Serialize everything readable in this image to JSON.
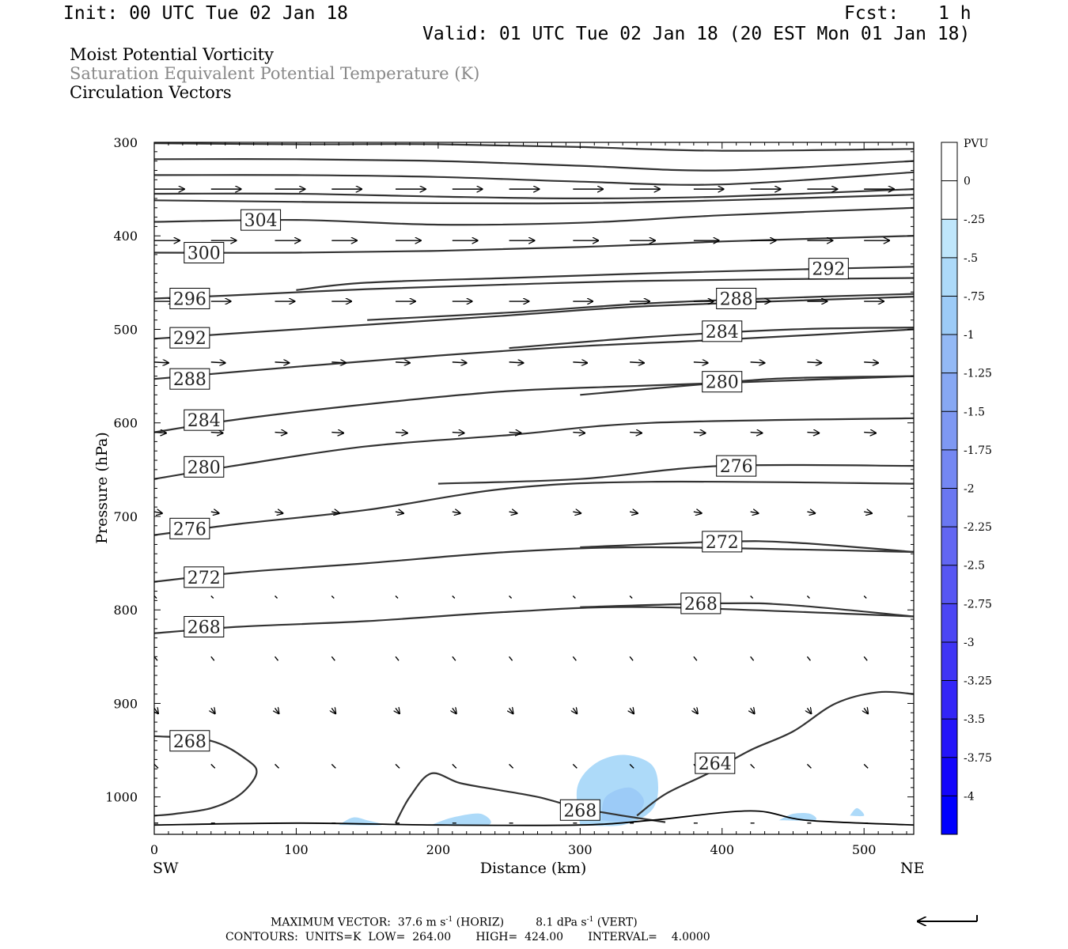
{
  "header": {
    "init": "Init: 00 UTC Tue 02 Jan 18",
    "fcst_label": "Fcst:",
    "fcst_value": "1 h",
    "valid": "Valid: 01 UTC Tue 02 Jan 18 (20 EST Mon 01 Jan 18)"
  },
  "fields": {
    "field1": "Moist Potential Vorticity",
    "field2": "Saturation Equivalent Potential Temperature (K)",
    "field3": "Circulation Vectors"
  },
  "colors": {
    "contour": "#333333",
    "field2_text": "#888888",
    "mpv_palette": [
      "#ffffff",
      "#bfe6fb",
      "#addaf9",
      "#9ccbf7",
      "#93b9f5",
      "#87a8f3",
      "#7e98f2",
      "#7487f2",
      "#6a77f1",
      "#6266f2",
      "#5756f3",
      "#4b45f4",
      "#3f35f5",
      "#3325f7",
      "#2415f9",
      "#1305fb",
      "#0000ff"
    ]
  },
  "chart_data": {
    "type": "cross-section",
    "xlabel": "Distance (km)",
    "ylabel": "Pressure (hPa)",
    "x_ticks": [
      "0",
      "100",
      "200",
      "300",
      "400",
      "500"
    ],
    "y_ticks": [
      "300",
      "400",
      "500",
      "600",
      "700",
      "800",
      "900",
      "1000"
    ],
    "xlim": [
      0,
      535
    ],
    "ylim": [
      300,
      1040
    ],
    "y_inverted": true,
    "left_end_label": "SW",
    "right_end_label": "NE",
    "colorbar": {
      "unit": "PVU",
      "tick_labels": [
        "0",
        "-.25",
        "-.5",
        "-.75",
        "-1",
        "-1.25",
        "-1.5",
        "-1.75",
        "-2",
        "-2.25",
        "-2.5",
        "-2.75",
        "-3",
        "-3.25",
        "-3.5",
        "-3.75",
        "-4"
      ]
    },
    "theta_es_contours": [
      {
        "label": null,
        "points": [
          [
            0,
            301
          ],
          [
            100,
            302
          ],
          [
            200,
            302
          ],
          [
            300,
            305
          ],
          [
            400,
            309
          ],
          [
            535,
            307
          ]
        ]
      },
      {
        "label": null,
        "points": [
          [
            0,
            318
          ],
          [
            100,
            318
          ],
          [
            200,
            320
          ],
          [
            300,
            325
          ],
          [
            400,
            330
          ],
          [
            535,
            320
          ]
        ]
      },
      {
        "label": null,
        "points": [
          [
            0,
            335
          ],
          [
            100,
            335
          ],
          [
            200,
            337
          ],
          [
            300,
            342
          ],
          [
            400,
            345
          ],
          [
            535,
            332
          ]
        ]
      },
      {
        "label": null,
        "points": [
          [
            0,
            355
          ],
          [
            100,
            355
          ],
          [
            200,
            358
          ],
          [
            300,
            360
          ],
          [
            400,
            358
          ],
          [
            535,
            350
          ]
        ]
      },
      {
        "label": null,
        "points": [
          [
            0,
            362
          ],
          [
            200,
            365
          ],
          [
            300,
            365
          ],
          [
            400,
            362
          ],
          [
            535,
            356
          ]
        ]
      },
      {
        "label": "304",
        "label_at": [
          75,
          383
        ],
        "points": [
          [
            0,
            385
          ],
          [
            100,
            383
          ],
          [
            200,
            388
          ],
          [
            300,
            386
          ],
          [
            400,
            378
          ],
          [
            535,
            370
          ]
        ]
      },
      {
        "label": "300",
        "label_at": [
          35,
          418
        ],
        "points": [
          [
            0,
            418
          ],
          [
            100,
            418
          ],
          [
            200,
            416
          ],
          [
            300,
            412
          ],
          [
            400,
            406
          ],
          [
            535,
            400
          ]
        ]
      },
      {
        "label": "292",
        "label_at": [
          475,
          435
        ],
        "points": [
          [
            100,
            458
          ],
          [
            150,
            450
          ],
          [
            250,
            445
          ],
          [
            350,
            440
          ],
          [
            450,
            436
          ],
          [
            535,
            433
          ]
        ]
      },
      {
        "label": "296",
        "label_at": [
          25,
          467
        ],
        "points": [
          [
            0,
            467
          ],
          [
            50,
            464
          ],
          [
            150,
            457
          ],
          [
            250,
            452
          ],
          [
            350,
            448
          ],
          [
            535,
            445
          ]
        ]
      },
      {
        "label": "288",
        "label_at": [
          410,
          467
        ],
        "points": [
          [
            150,
            490
          ],
          [
            250,
            482
          ],
          [
            350,
            472
          ],
          [
            450,
            466
          ],
          [
            535,
            462
          ]
        ]
      },
      {
        "label": "292",
        "label_at": [
          25,
          509
        ],
        "points": [
          [
            0,
            510
          ],
          [
            50,
            505
          ],
          [
            150,
            495
          ],
          [
            250,
            485
          ],
          [
            350,
            475
          ],
          [
            535,
            465
          ]
        ]
      },
      {
        "label": "284",
        "label_at": [
          400,
          502
        ],
        "points": [
          [
            250,
            520
          ],
          [
            350,
            508
          ],
          [
            450,
            500
          ],
          [
            535,
            498
          ]
        ]
      },
      {
        "label": "288",
        "label_at": [
          25,
          553
        ],
        "points": [
          [
            0,
            553
          ],
          [
            100,
            540
          ],
          [
            200,
            528
          ],
          [
            300,
            518
          ],
          [
            400,
            511
          ],
          [
            535,
            500
          ]
        ]
      },
      {
        "label": "280",
        "label_at": [
          400,
          556
        ],
        "points": [
          [
            300,
            570
          ],
          [
            400,
            557
          ],
          [
            450,
            552
          ],
          [
            535,
            550
          ]
        ]
      },
      {
        "label": "284",
        "label_at": [
          35,
          597
        ],
        "points": [
          [
            0,
            610
          ],
          [
            60,
            596
          ],
          [
            150,
            580
          ],
          [
            250,
            566
          ],
          [
            350,
            560
          ],
          [
            535,
            550
          ]
        ]
      },
      {
        "label": "276",
        "label_at": [
          410,
          646
        ],
        "points": [
          [
            200,
            665
          ],
          [
            300,
            660
          ],
          [
            400,
            646
          ],
          [
            535,
            646
          ]
        ]
      },
      {
        "label": "280",
        "label_at": [
          35,
          647
        ],
        "points": [
          [
            0,
            660
          ],
          [
            60,
            645
          ],
          [
            150,
            625
          ],
          [
            250,
            613
          ],
          [
            350,
            600
          ],
          [
            535,
            595
          ]
        ]
      },
      {
        "label": "276",
        "label_at": [
          25,
          713
        ],
        "points": [
          [
            0,
            720
          ],
          [
            60,
            708
          ],
          [
            150,
            693
          ],
          [
            250,
            670
          ],
          [
            350,
            663
          ],
          [
            535,
            665
          ]
        ]
      },
      {
        "label": "272",
        "label_at": [
          400,
          727
        ],
        "points": [
          [
            300,
            733
          ],
          [
            400,
            727
          ],
          [
            450,
            728
          ],
          [
            535,
            738
          ]
        ]
      },
      {
        "label": "272",
        "label_at": [
          35,
          765
        ],
        "points": [
          [
            0,
            770
          ],
          [
            60,
            760
          ],
          [
            150,
            750
          ],
          [
            250,
            738
          ],
          [
            350,
            733
          ],
          [
            535,
            738
          ]
        ]
      },
      {
        "label": "268",
        "label_at": [
          385,
          793
        ],
        "points": [
          [
            300,
            797
          ],
          [
            400,
            793
          ],
          [
            450,
            795
          ],
          [
            535,
            807
          ]
        ]
      },
      {
        "label": "268",
        "label_at": [
          35,
          818
        ],
        "points": [
          [
            0,
            825
          ],
          [
            60,
            818
          ],
          [
            150,
            812
          ],
          [
            250,
            802
          ],
          [
            350,
            797
          ],
          [
            535,
            807
          ]
        ]
      },
      {
        "label": "268",
        "label_at": [
          25,
          940
        ],
        "points": [
          [
            0,
            935
          ],
          [
            40,
            940
          ],
          [
            65,
            960
          ],
          [
            72,
            975
          ],
          [
            60,
            998
          ],
          [
            40,
            1012
          ],
          [
            15,
            1018
          ],
          [
            0,
            1020
          ]
        ]
      },
      {
        "label": "264",
        "label_at": [
          395,
          964
        ],
        "points": [
          [
            340,
            1020
          ],
          [
            360,
            997
          ],
          [
            390,
            975
          ],
          [
            420,
            950
          ],
          [
            450,
            930
          ],
          [
            480,
            900
          ],
          [
            510,
            888
          ],
          [
            535,
            890
          ]
        ]
      },
      {
        "label": "268",
        "label_at": [
          300,
          1014
        ],
        "points": [
          [
            170,
            1028
          ],
          [
            180,
            1000
          ],
          [
            195,
            975
          ],
          [
            215,
            985
          ],
          [
            240,
            992
          ],
          [
            270,
            1000
          ],
          [
            300,
            1012
          ],
          [
            330,
            1020
          ],
          [
            360,
            1027
          ]
        ]
      }
    ],
    "ground_line": [
      [
        0,
        1030
      ],
      [
        100,
        1028
      ],
      [
        200,
        1030
      ],
      [
        300,
        1030
      ],
      [
        350,
        1025
      ],
      [
        420,
        1015
      ],
      [
        460,
        1025
      ],
      [
        535,
        1030
      ]
    ],
    "mpv_shading": [
      {
        "level": -0.5,
        "points": [
          [
            300,
            1030
          ],
          [
            298,
            990
          ],
          [
            310,
            965
          ],
          [
            330,
            955
          ],
          [
            350,
            965
          ],
          [
            355,
            990
          ],
          [
            350,
            1015
          ],
          [
            330,
            1030
          ]
        ]
      },
      {
        "level": -0.75,
        "points": [
          [
            315,
            1025
          ],
          [
            318,
            1000
          ],
          [
            335,
            990
          ],
          [
            345,
            1005
          ],
          [
            335,
            1025
          ]
        ]
      },
      {
        "level": -0.5,
        "points": [
          [
            195,
            1030
          ],
          [
            210,
            1022
          ],
          [
            230,
            1018
          ],
          [
            235,
            1030
          ]
        ]
      },
      {
        "level": -0.5,
        "points": [
          [
            130,
            1030
          ],
          [
            140,
            1022
          ],
          [
            150,
            1025
          ],
          [
            160,
            1030
          ]
        ]
      },
      {
        "level": -0.5,
        "points": [
          [
            440,
            1025
          ],
          [
            450,
            1018
          ],
          [
            462,
            1018
          ],
          [
            465,
            1025
          ]
        ]
      },
      {
        "level": -0.5,
        "points": [
          [
            490,
            1020
          ],
          [
            495,
            1012
          ],
          [
            500,
            1020
          ]
        ]
      }
    ],
    "vector_rows": [
      {
        "p": 350,
        "x": [
          0,
          40,
          85,
          125,
          170,
          210,
          250,
          295,
          335,
          380,
          420,
          460,
          500
        ],
        "dx": 38,
        "dy": 0
      },
      {
        "p": 405,
        "x": [
          0,
          40,
          85,
          125,
          170,
          210,
          250,
          295,
          335,
          380,
          420,
          460,
          500
        ],
        "dx": 32,
        "dy": 0
      },
      {
        "p": 470,
        "x": [
          0,
          40,
          85,
          125,
          170,
          210,
          250,
          295,
          335,
          380,
          420,
          460,
          500
        ],
        "dx": 25,
        "dy": 0
      },
      {
        "p": 535,
        "x": [
          0,
          40,
          85,
          125,
          170,
          210,
          250,
          295,
          335,
          380,
          420,
          460,
          500
        ],
        "dx": 18,
        "dy": 1
      },
      {
        "p": 610,
        "x": [
          0,
          40,
          85,
          125,
          170,
          210,
          250,
          295,
          335,
          380,
          420,
          460,
          500
        ],
        "dx": 15,
        "dy": 1
      },
      {
        "p": 695,
        "x": [
          0,
          40,
          85,
          125,
          170,
          210,
          250,
          295,
          335,
          380,
          420,
          460,
          500
        ],
        "dx": 10,
        "dy": 2
      },
      {
        "p": 785,
        "x": [
          0,
          40,
          85,
          125,
          170,
          210,
          250,
          295,
          335,
          380,
          420,
          460,
          500
        ],
        "dx": 3,
        "dy": 3
      },
      {
        "p": 850,
        "x": [
          0,
          40,
          85,
          125,
          170,
          210,
          250,
          295,
          335,
          380,
          420,
          460,
          500
        ],
        "dx": 4,
        "dy": 5
      },
      {
        "p": 905,
        "x": [
          0,
          40,
          85,
          125,
          170,
          210,
          250,
          295,
          335,
          380,
          420,
          460,
          500
        ],
        "dx": 5,
        "dy": 7
      },
      {
        "p": 965,
        "x": [
          0,
          40,
          85,
          125,
          170,
          210,
          250,
          295,
          335,
          380,
          420,
          460,
          500
        ],
        "dx": 5,
        "dy": 5
      },
      {
        "p": 1028,
        "x": [
          0,
          40,
          85,
          125,
          170,
          210,
          250,
          295,
          335,
          380,
          420,
          460,
          500
        ],
        "dx": 5,
        "dy": 0
      }
    ]
  },
  "footer": {
    "max_vector_prefix": "MAXIMUM VECTOR:  37.6 m s",
    "max_vector_exp": "-1",
    "max_vector_mid": " (HORIZ)         8.1 dPa s",
    "max_vector_exp2": "-1",
    "max_vector_suffix": " (VERT)",
    "contours": "CONTOURS:  UNITS=K  LOW=  264.00       HIGH=  424.00       INTERVAL=    4.0000"
  }
}
